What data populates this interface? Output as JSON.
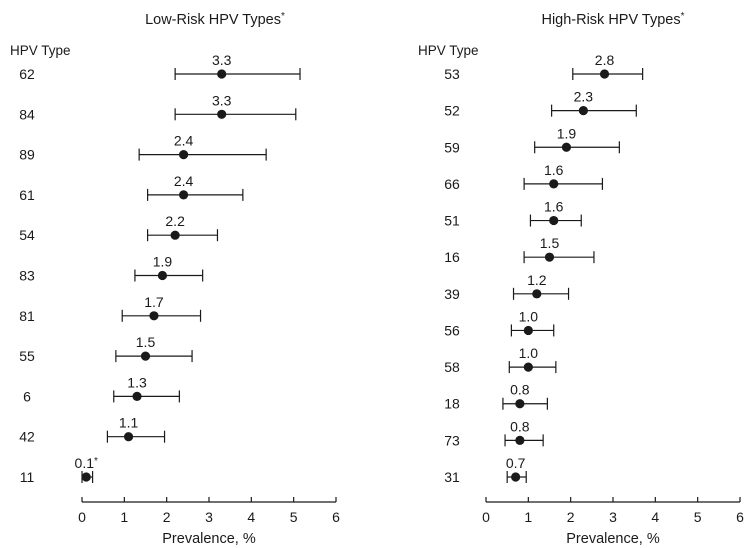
{
  "chart_data": [
    {
      "type": "scatter",
      "title": "Low-Risk HPV Types",
      "title_marker": "*",
      "row_header": "HPV Type",
      "xlabel": "Prevalence, %",
      "xlim": [
        0,
        6
      ],
      "xticks": [
        "0",
        "1",
        "2",
        "3",
        "4",
        "5",
        "6"
      ],
      "error_bars": true,
      "grid": false,
      "series": [
        {
          "categories": [
            "62",
            "84",
            "89",
            "61",
            "54",
            "83",
            "81",
            "55",
            "6",
            "42",
            "11"
          ],
          "values": [
            3.3,
            3.3,
            2.4,
            2.4,
            2.2,
            1.9,
            1.7,
            1.5,
            1.3,
            1.1,
            0.1
          ],
          "ci_low": [
            2.2,
            2.2,
            1.35,
            1.55,
            1.55,
            1.25,
            0.95,
            0.8,
            0.75,
            0.6,
            0.0
          ],
          "ci_high": [
            5.15,
            5.05,
            4.35,
            3.8,
            3.2,
            2.85,
            2.8,
            2.6,
            2.3,
            1.95,
            0.25
          ],
          "value_labels": [
            "3.3",
            "3.3",
            "2.4",
            "2.4",
            "2.2",
            "1.9",
            "1.7",
            "1.5",
            "1.3",
            "1.1",
            "0.1*"
          ]
        }
      ]
    },
    {
      "type": "scatter",
      "title": "High-Risk HPV Types",
      "title_marker": "*",
      "row_header": "HPV Type",
      "xlabel": "Prevalence, %",
      "xlim": [
        0,
        6
      ],
      "xticks": [
        "0",
        "1",
        "2",
        "3",
        "4",
        "5",
        "6"
      ],
      "error_bars": true,
      "grid": false,
      "series": [
        {
          "categories": [
            "53",
            "52",
            "59",
            "66",
            "51",
            "16",
            "39",
            "56",
            "58",
            "18",
            "73",
            "31"
          ],
          "values": [
            2.8,
            2.3,
            1.9,
            1.6,
            1.6,
            1.5,
            1.2,
            1.0,
            1.0,
            0.8,
            0.8,
            0.7
          ],
          "ci_low": [
            2.05,
            1.55,
            1.15,
            0.9,
            1.05,
            0.9,
            0.65,
            0.6,
            0.55,
            0.4,
            0.45,
            0.5
          ],
          "ci_high": [
            3.7,
            3.55,
            3.15,
            2.75,
            2.25,
            2.55,
            1.95,
            1.6,
            1.65,
            1.45,
            1.35,
            0.95
          ],
          "value_labels": [
            "2.8",
            "2.3",
            "1.9",
            "1.6",
            "1.6",
            "1.5",
            "1.2",
            "1.0",
            "1.0",
            "0.8",
            "0.8",
            "0.7"
          ]
        }
      ]
    }
  ]
}
